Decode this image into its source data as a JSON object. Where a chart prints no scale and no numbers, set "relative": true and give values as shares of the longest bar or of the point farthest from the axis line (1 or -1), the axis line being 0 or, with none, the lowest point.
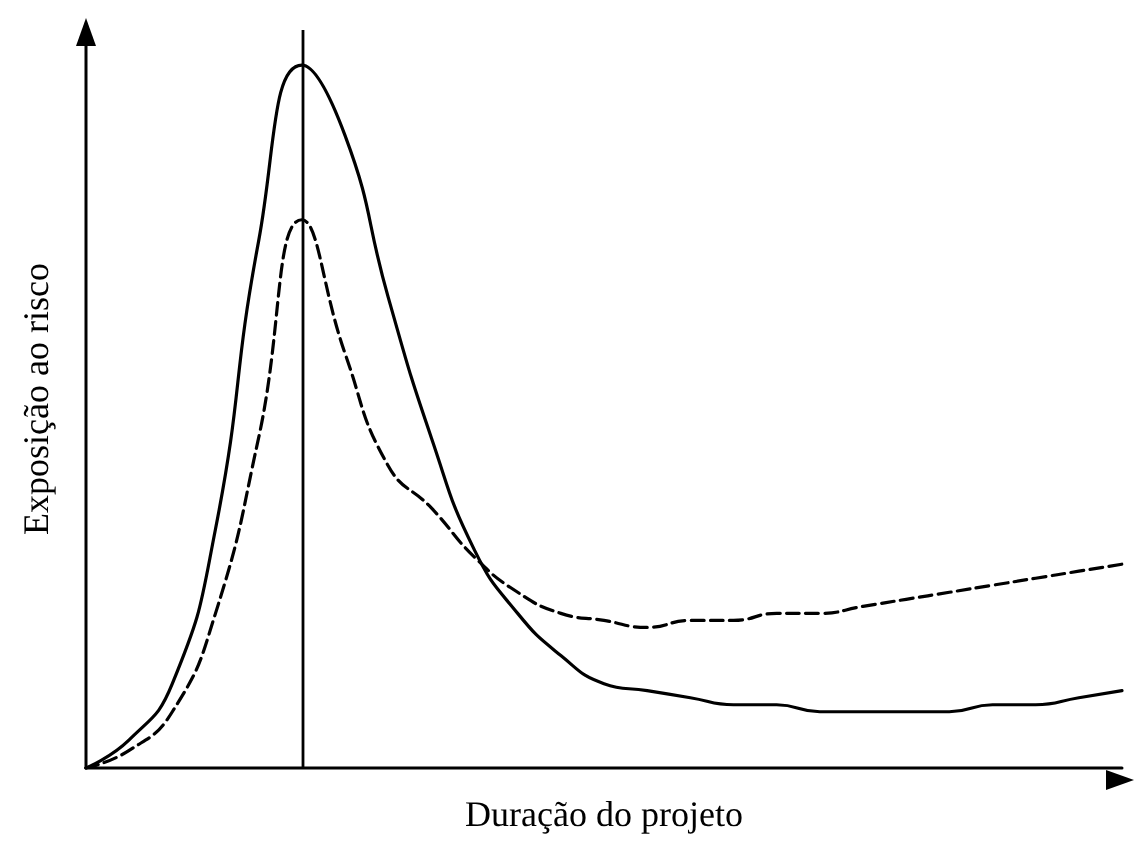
{
  "chart_data": {
    "type": "line",
    "relative": true,
    "xlabel": "Duração do projeto",
    "ylabel": "Exposição ao risco",
    "categories": [
      null,
      null,
      null,
      null,
      null,
      null,
      null,
      null,
      null,
      null,
      null,
      null,
      null,
      null,
      null,
      null,
      null,
      null,
      null,
      null,
      null,
      null,
      null,
      null,
      null
    ],
    "series": [
      {
        "color": "#000000",
        "line_style": "solid",
        "values": [
          0,
          0.04,
          0.12,
          0.34,
          0.75,
          1,
          0.9,
          0.67,
          0.47,
          0.31,
          0.22,
          0.16,
          0.12,
          0.11,
          0.1,
          0.09,
          0.09,
          0.08,
          0.08,
          0.08,
          0.08,
          0.09,
          0.09,
          0.1,
          0.11
        ]
      },
      {
        "color": "#000000",
        "line_style": "dashed",
        "values": [
          0,
          0.025,
          0.08,
          0.22,
          0.47,
          0.78,
          0.59,
          0.43,
          0.37,
          0.3,
          0.25,
          0.22,
          0.21,
          0.2,
          0.21,
          0.21,
          0.22,
          0.22,
          0.23,
          0.24,
          0.25,
          0.26,
          0.27,
          0.28,
          0.29
        ]
      }
    ],
    "grid": false,
    "marker": "none"
  }
}
